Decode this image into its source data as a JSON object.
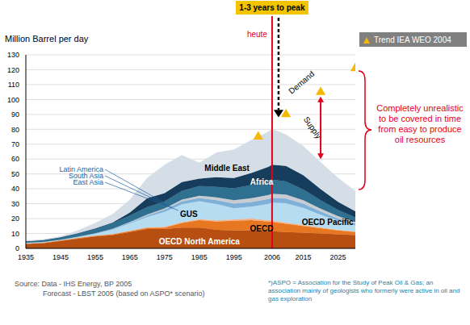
{
  "chart_data": {
    "type": "area",
    "stacked": true,
    "grid": true,
    "legend": "upper right",
    "y_label": "Million Barrel per day",
    "x": [
      1935,
      1940,
      1945,
      1950,
      1955,
      1960,
      1965,
      1970,
      1975,
      1980,
      1985,
      1990,
      1995,
      2000,
      2005,
      2006,
      2010,
      2015,
      2020,
      2025,
      2030
    ],
    "xlim": [
      1935,
      2030
    ],
    "xticks": [
      1935,
      1945,
      1955,
      1965,
      1975,
      1985,
      1995,
      2006,
      2015,
      2025
    ],
    "ylim": [
      0,
      130
    ],
    "yticks": [
      0,
      10,
      20,
      30,
      40,
      50,
      60,
      70,
      80,
      90,
      100,
      110,
      120,
      130
    ],
    "series": [
      {
        "name": "OECD North America",
        "color": "#b84f12",
        "values": [
          3,
          3.5,
          5,
          6.5,
          8,
          9,
          11,
          13,
          13,
          14,
          14,
          12.5,
          12,
          12,
          11.5,
          11.5,
          11,
          10.5,
          10,
          9.5,
          9
        ]
      },
      {
        "name": "OECD",
        "color": "#e87722",
        "values": [
          0.3,
          0.3,
          0.4,
          0.5,
          0.5,
          0.5,
          0.6,
          0.8,
          1,
          3,
          5,
          5.5,
          6.5,
          7,
          6.5,
          6.3,
          5.5,
          4.5,
          3.5,
          2.5,
          2
        ]
      },
      {
        "name": "OECD Pacific",
        "color": "#f4b183",
        "values": [
          0,
          0,
          0,
          0,
          0,
          0.1,
          0.2,
          0.3,
          0.5,
          0.6,
          0.7,
          0.8,
          1,
          1,
          0.9,
          0.9,
          0.8,
          0.7,
          0.6,
          0.5,
          0.4
        ]
      },
      {
        "name": "GUS",
        "color": "#b5dcf0",
        "values": [
          0.5,
          0.6,
          0.4,
          0.8,
          1.5,
          3,
          5,
          7,
          10,
          12,
          12,
          11,
          7.5,
          8,
          11,
          12,
          13,
          11.5,
          8.5,
          6,
          4
        ]
      },
      {
        "name": "East Asia",
        "color": "#7fb0d8",
        "values": [
          0,
          0,
          0,
          0,
          0.1,
          0.3,
          0.6,
          1,
          1.5,
          2,
          2.2,
          2.5,
          3,
          3.2,
          3.3,
          3.3,
          3.2,
          2.8,
          2.2,
          1.6,
          1.2
        ]
      },
      {
        "name": "South Asia",
        "color": "#c8ccd0",
        "values": [
          0,
          0,
          0,
          0,
          0.1,
          0.2,
          0.4,
          0.6,
          0.8,
          1.2,
          1.5,
          2,
          2.3,
          2.5,
          2.7,
          2.7,
          2.6,
          2.3,
          1.9,
          1.5,
          1.1
        ]
      },
      {
        "name": "Latin America",
        "color": "#2f6f8f",
        "values": [
          0.8,
          1,
          1.5,
          2.2,
          3,
          3.8,
          4.3,
          5,
          4.8,
          5.8,
          6.5,
          7,
          8,
          9,
          9.5,
          9.5,
          8.8,
          7.3,
          5.6,
          4.2,
          3.2
        ]
      },
      {
        "name": "Africa",
        "color": "#163e5c",
        "values": [
          0.1,
          0.1,
          0.1,
          0.1,
          0.2,
          0.5,
          2,
          6,
          5.5,
          6,
          5,
          6.5,
          7,
          8,
          9.5,
          10,
          10.5,
          9.5,
          7.5,
          5.5,
          4
        ]
      },
      {
        "name": "Middle East",
        "color": "#d5dde6",
        "values": [
          0.4,
          0.5,
          0.6,
          2,
          3.5,
          5.5,
          8.5,
          13.5,
          19,
          18,
          10.5,
          16.5,
          19,
          22,
          23.5,
          24,
          21,
          19.5,
          18,
          16,
          13.5
        ]
      },
      {
        "name": "Trend IEA WEO 2004",
        "type": "scatter",
        "marker": "triangle",
        "color": "#f5b800",
        "x": [
          2002,
          2010,
          2020,
          2030
        ],
        "values": [
          75,
          90,
          105,
          121
        ]
      }
    ],
    "vertical_line": {
      "x": 2006,
      "label": "heute",
      "color": "#e2001a"
    },
    "annotations": {
      "peak": "1-3 years to peak",
      "demand": "Demand",
      "supply": "Supply",
      "note": "Completely unrealistic to be covered in time from easy to produce oil resources"
    },
    "source": [
      "Source: Data - IHS Energy, BP 2005",
      "Forecast - LBST 2005 (based on ASPO* scenario)"
    ],
    "footnote": "*)ASPO = Association for the Study of Peak Oil & Gas; an association mainly of geologists who formerly were active in oil and gas exploration"
  }
}
